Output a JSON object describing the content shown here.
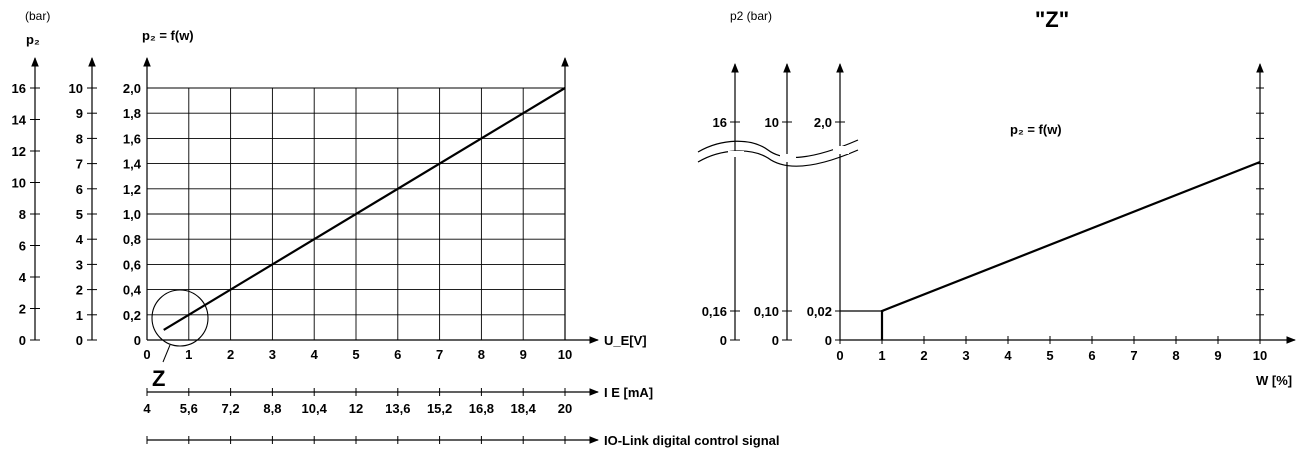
{
  "chart_data": [
    {
      "type": "line",
      "title": "p₂ = f(w)",
      "xlabel": "U_E[V]",
      "x_ticks": [
        "0",
        "1",
        "2",
        "3",
        "4",
        "5",
        "6",
        "7",
        "8",
        "9",
        "10"
      ],
      "xlim": [
        0,
        10
      ],
      "ylim": [
        0,
        2.0
      ],
      "y_ticks": [
        "0",
        "0,2",
        "0,4",
        "0,6",
        "0,8",
        "1,0",
        "1,2",
        "1,4",
        "1,6",
        "1,8",
        "2,0"
      ],
      "secondary_y_ticks": [
        "0",
        "1",
        "2",
        "3",
        "4",
        "5",
        "6",
        "7",
        "8",
        "9",
        "10"
      ],
      "third_y_ticks": [
        "0",
        "2",
        "4",
        "6",
        "8",
        "10",
        "12",
        "14",
        "16"
      ],
      "third_y_label": "p₂",
      "third_y_unit": "(bar)",
      "current_axis_label": "I E [mA]",
      "current_ticks": [
        "4",
        "5,6",
        "7,2",
        "8,8",
        "10,4",
        "12",
        "13,6",
        "15,2",
        "16,8",
        "18,4",
        "20"
      ],
      "io_link_label": "IO-Link digital control signal",
      "zoom_marker": "Z",
      "grid": true,
      "series": [
        {
          "x": [
            0.4,
            10
          ],
          "y": [
            0.08,
            2.0
          ]
        }
      ]
    },
    {
      "type": "line",
      "title": "p₂ = f(w)",
      "header_title": "\"Z\"",
      "ylabel": "p2 (bar)",
      "xlabel": "W [%]",
      "x_ticks": [
        "0",
        "1",
        "2",
        "3",
        "4",
        "5",
        "6",
        "7",
        "8",
        "9",
        "10"
      ],
      "xlim": [
        0,
        10
      ],
      "y_axis_labels": [
        {
          "low": "0",
          "mid": "0,16",
          "high": "16"
        },
        {
          "low": "0",
          "mid": "0,10",
          "high": "10"
        },
        {
          "low": "0",
          "mid": "0,02",
          "high": "2,0"
        }
      ],
      "grid": false,
      "series": [
        {
          "x": [
            1,
            1,
            10
          ],
          "y": [
            0,
            0.02,
            0.2
          ]
        }
      ]
    }
  ]
}
